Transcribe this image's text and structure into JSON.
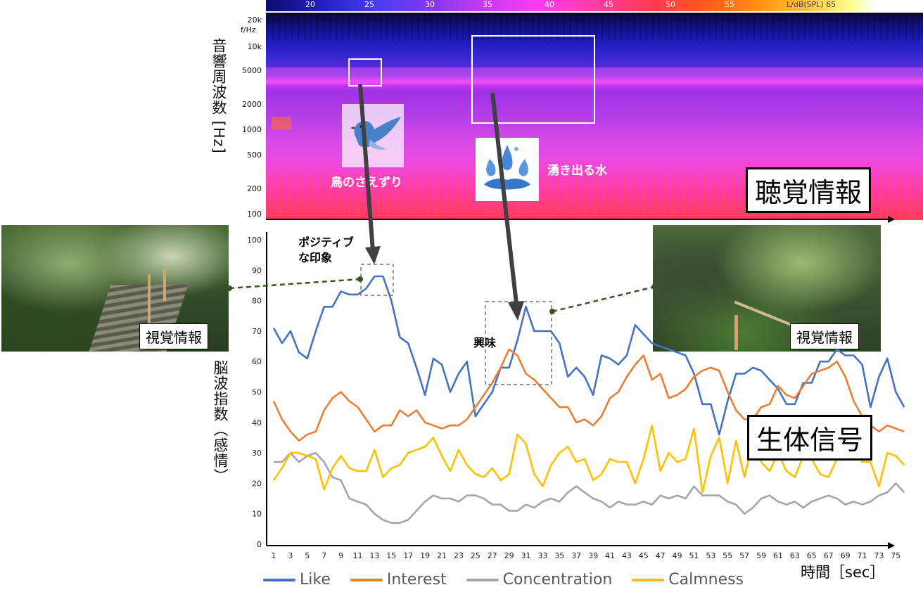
{
  "colorbar": {
    "ticks": [
      "20",
      "25",
      "30",
      "35",
      "40",
      "45",
      "50",
      "55"
    ],
    "unit_label": "L/dB(SPL) 65"
  },
  "spectrogram": {
    "ylabel": "音響周波数 [Hz]",
    "freq_unit": "f/Hz",
    "freq_ticks": [
      "20k",
      "10k",
      "5000",
      "2000",
      "1000",
      "500",
      "200",
      "100"
    ],
    "box_label": "聴覚情報"
  },
  "annotations": {
    "bird": "鳥のさえずり",
    "water": "湧き出る水",
    "positive_line1": "ポジティブ",
    "positive_line2": "な印象",
    "interest": "興味",
    "bio_signal": "生体信号"
  },
  "photos": {
    "left_label": "視覚情報",
    "right_label": "視覚情報"
  },
  "axes": {
    "ylabel": "脳波指数（感情）",
    "xlabel": "時間［sec］"
  },
  "chart_data": {
    "type": "line",
    "ylim": [
      0,
      100
    ],
    "yticks": [
      0,
      10,
      20,
      30,
      40,
      50,
      60,
      70,
      80,
      90,
      100
    ],
    "x": [
      1,
      2,
      3,
      4,
      5,
      6,
      7,
      8,
      9,
      10,
      11,
      12,
      13,
      14,
      15,
      16,
      17,
      18,
      19,
      20,
      21,
      22,
      23,
      24,
      25,
      26,
      27,
      28,
      29,
      30,
      31,
      32,
      33,
      34,
      35,
      36,
      37,
      38,
      39,
      40,
      41,
      42,
      43,
      44,
      45,
      46,
      47,
      48,
      49,
      50,
      51,
      52,
      53,
      54,
      55,
      56,
      57,
      58,
      59,
      60,
      61,
      62,
      63,
      64,
      65,
      66,
      67,
      68,
      69,
      70,
      71,
      72,
      73,
      74,
      75,
      76
    ],
    "xtick_labels": [
      "1",
      "3",
      "5",
      "7",
      "9",
      "11",
      "13",
      "15",
      "17",
      "19",
      "21",
      "23",
      "25",
      "27",
      "29",
      "31",
      "33",
      "35",
      "37",
      "39",
      "41",
      "43",
      "45",
      "47",
      "49",
      "51",
      "53",
      "55",
      "57",
      "59",
      "61",
      "63",
      "65",
      "67",
      "69",
      "71",
      "73",
      "75"
    ],
    "series": [
      {
        "name": "Like",
        "color": "#4472C4",
        "values": [
          71,
          66,
          70,
          63,
          61,
          70,
          78,
          78,
          83,
          82,
          82,
          84,
          88,
          88,
          80,
          68,
          66,
          58,
          49,
          61,
          59,
          50,
          56,
          60,
          42,
          46,
          50,
          58,
          58,
          67,
          78,
          70,
          70,
          70,
          66,
          55,
          58,
          55,
          49,
          62,
          61,
          59,
          62,
          72,
          69,
          66,
          65,
          64,
          63,
          62,
          56,
          46,
          46,
          36,
          47,
          56,
          56,
          58,
          57,
          54,
          51,
          46,
          46,
          53,
          53,
          60,
          60,
          64,
          62,
          62,
          59,
          45,
          55,
          61,
          50,
          45
        ]
      },
      {
        "name": "Interest",
        "color": "#ED7D31",
        "values": [
          47,
          41,
          37,
          34,
          36,
          37,
          44,
          48,
          50,
          47,
          45,
          41,
          37,
          39,
          39,
          44,
          42,
          44,
          40,
          39,
          38,
          39,
          39,
          41,
          45,
          49,
          53,
          58,
          64,
          62,
          56,
          54,
          51,
          48,
          45,
          45,
          40,
          41,
          39,
          42,
          48,
          50,
          55,
          59,
          62,
          54,
          56,
          48,
          49,
          51,
          55,
          57,
          58,
          57,
          50,
          44,
          41,
          41,
          45,
          46,
          52,
          49,
          48,
          52,
          56,
          57,
          58,
          60,
          55,
          47,
          42,
          39,
          37,
          39,
          38,
          37
        ]
      },
      {
        "name": "Concentration",
        "color": "#A5A5A5",
        "values": [
          27,
          27,
          30,
          27,
          29,
          30,
          27,
          22,
          21,
          15,
          14,
          13,
          10,
          8,
          7,
          7,
          8,
          11,
          14,
          16,
          15,
          15,
          14,
          16,
          16,
          15,
          13,
          13,
          11,
          11,
          13,
          12,
          14,
          15,
          14,
          17,
          19,
          17,
          15,
          14,
          12,
          14,
          13,
          13,
          14,
          13,
          16,
          15,
          16,
          15,
          19,
          16,
          16,
          16,
          14,
          13,
          10,
          12,
          15,
          16,
          14,
          13,
          14,
          12,
          14,
          15,
          16,
          15,
          13,
          14,
          13,
          14,
          16,
          17,
          20,
          17
        ]
      },
      {
        "name": "Calmness",
        "color": "#FFC000",
        "values": [
          21,
          25,
          30,
          30,
          29,
          28,
          18,
          25,
          29,
          25,
          24,
          24,
          31,
          22,
          25,
          26,
          30,
          31,
          32,
          35,
          29,
          24,
          31,
          26,
          23,
          22,
          25,
          21,
          23,
          36,
          33,
          23,
          19,
          26,
          30,
          32,
          27,
          28,
          21,
          23,
          28,
          27,
          27,
          20,
          28,
          39,
          24,
          30,
          27,
          28,
          38,
          17,
          29,
          35,
          20,
          34,
          22,
          34,
          27,
          24,
          30,
          24,
          22,
          29,
          28,
          23,
          22,
          28,
          29,
          37,
          27,
          27,
          19,
          30,
          29,
          26
        ]
      }
    ]
  }
}
